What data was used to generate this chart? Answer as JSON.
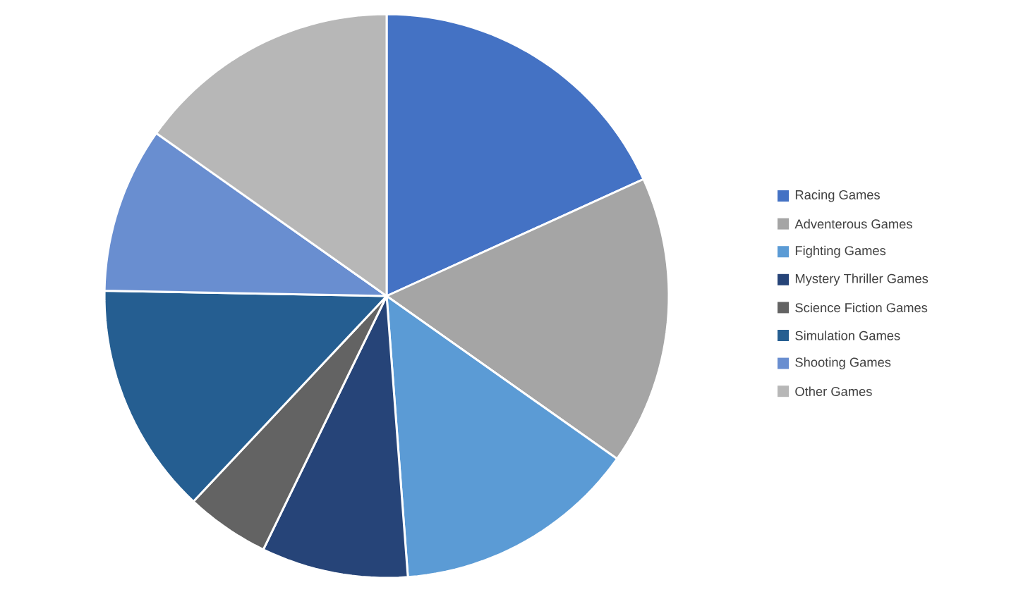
{
  "chart_data": {
    "type": "pie",
    "legend": "right",
    "categories": [
      "Racing Games",
      "Adventerous Games",
      "Fighting Games",
      "Mystery Thriller Games",
      "Science Fiction Games",
      "Simulation Games",
      "Shooting Games",
      "Other Games"
    ],
    "values": [
      18.2,
      16.6,
      14.0,
      8.4,
      4.8,
      13.3,
      9.5,
      15.2
    ],
    "colors": [
      "#4472c4",
      "#a5a5a5",
      "#5b9bd5",
      "#264478",
      "#636363",
      "#255e91",
      "#698ed0",
      "#b7b7b7"
    ]
  }
}
